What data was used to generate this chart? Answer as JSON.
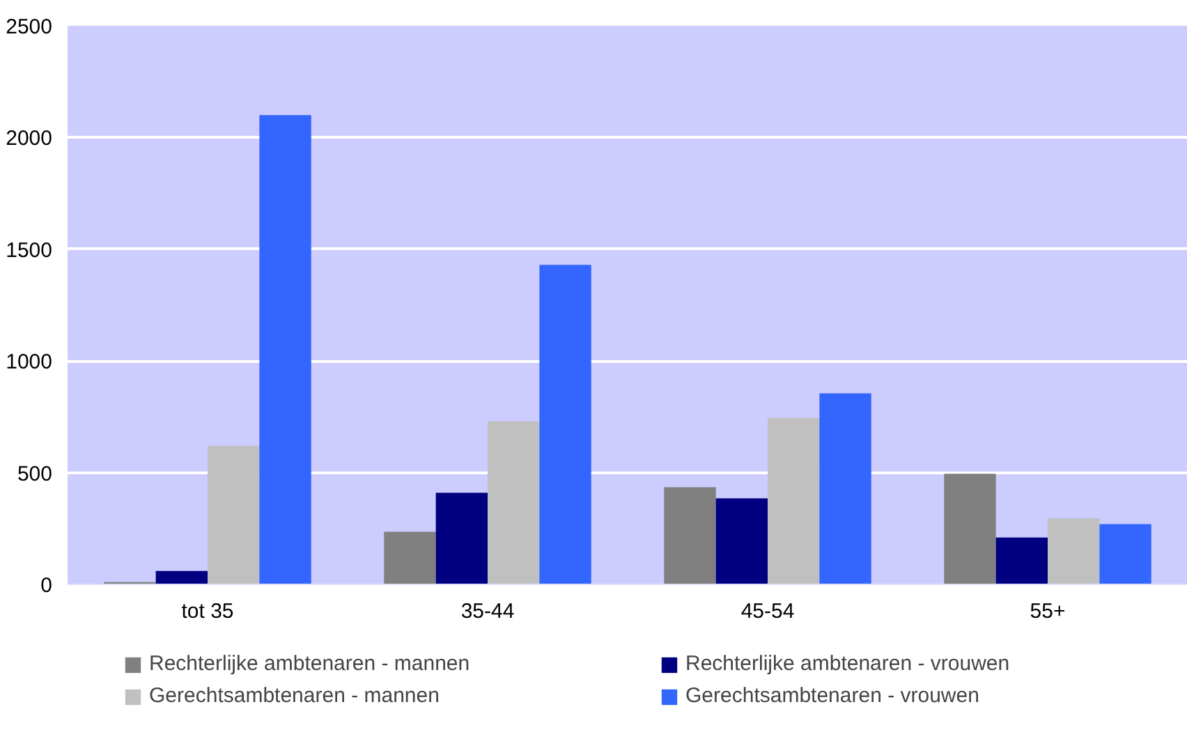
{
  "chart_data": {
    "type": "bar",
    "categories": [
      "tot 35",
      "35-44",
      "45-54",
      "55+"
    ],
    "series": [
      {
        "name": "Rechterlijke ambtenaren - mannen",
        "color": "#808080",
        "values": [
          10,
          235,
          435,
          495
        ]
      },
      {
        "name": "Rechterlijke ambtenaren - vrouwen",
        "color": "#000080",
        "values": [
          60,
          410,
          385,
          210
        ]
      },
      {
        "name": "Gerechtsambtenaren - mannen",
        "color": "#c0c0c0",
        "values": [
          620,
          730,
          745,
          295
        ]
      },
      {
        "name": "Gerechtsambtenaren - vrouwen",
        "color": "#3366ff",
        "values": [
          2100,
          1430,
          855,
          270
        ]
      }
    ],
    "ylim": [
      0,
      2500
    ],
    "yticks": [
      0,
      500,
      1000,
      1500,
      2000,
      2500
    ],
    "grid": "y",
    "legend": "bottom"
  }
}
